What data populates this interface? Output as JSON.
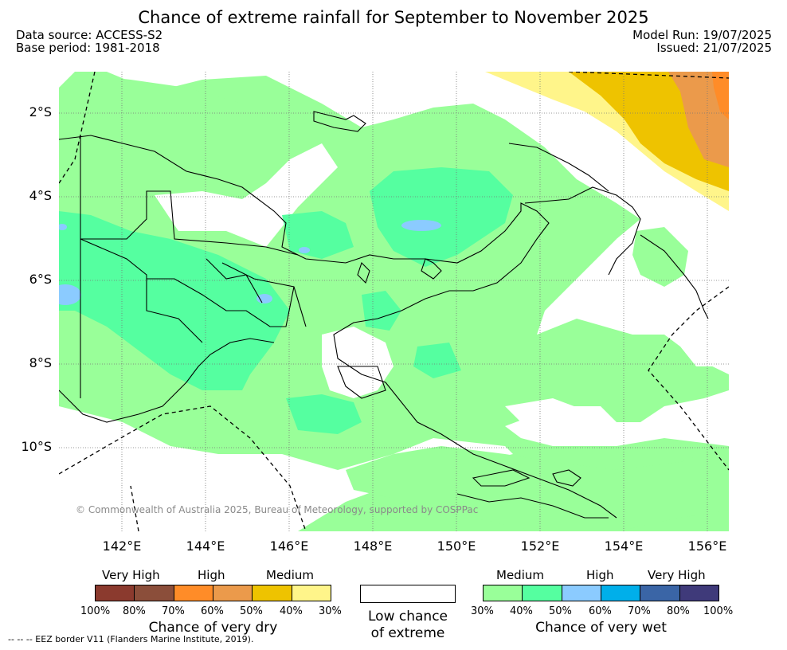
{
  "title": "Chance of extreme rainfall for September to November 2025",
  "data_source": "Data source: ACCESS-S2",
  "base_period": "Base period: 1981-2018",
  "model_run": "Model Run: 19/07/2025",
  "issued": "Issued: 21/07/2025",
  "map": {
    "lat_labels": [
      "2°S",
      "4°S",
      "6°S",
      "8°S",
      "10°S"
    ],
    "lon_labels": [
      "142°E",
      "144°E",
      "146°E",
      "148°E",
      "150°E",
      "152°E",
      "154°E",
      "156°E"
    ],
    "colors": {
      "dry_high": "#8B3A2E",
      "dry_high2": "#8B4E3A",
      "dry_mid1": "#FF8C28",
      "dry_mid2": "#EB9A4B",
      "dry_med1": "#EEC300",
      "dry_med2": "#FFF58A",
      "low": "#FFFFFF",
      "wet_med1": "#99FF99",
      "wet_med2": "#55FFA0",
      "wet_high1": "#8BCBFF",
      "wet_high2": "#00AFEA",
      "wet_vhigh1": "#3A65A6",
      "wet_vhigh2": "#3F3A7A",
      "land_outline": "#000000"
    },
    "copyright": "© Commonwealth of Australia 2025, Bureau of Meteorology, supported by COSPPac"
  },
  "legend": {
    "dry": {
      "headers": [
        "Very High",
        "High",
        "Medium"
      ],
      "ticks": [
        "100%",
        "80%",
        "70%",
        "60%",
        "50%",
        "40%",
        "30%"
      ],
      "caption": "Chance of very dry"
    },
    "low": {
      "caption_line1": "Low chance",
      "caption_line2": "of extreme"
    },
    "wet": {
      "headers": [
        "Medium",
        "High",
        "Very High"
      ],
      "ticks": [
        "30%",
        "40%",
        "50%",
        "60%",
        "70%",
        "80%",
        "100%"
      ],
      "caption": "Chance of very wet"
    }
  },
  "eez_note": "--  --  -- EEZ border V11 (Flanders Marine Institute, 2019)."
}
